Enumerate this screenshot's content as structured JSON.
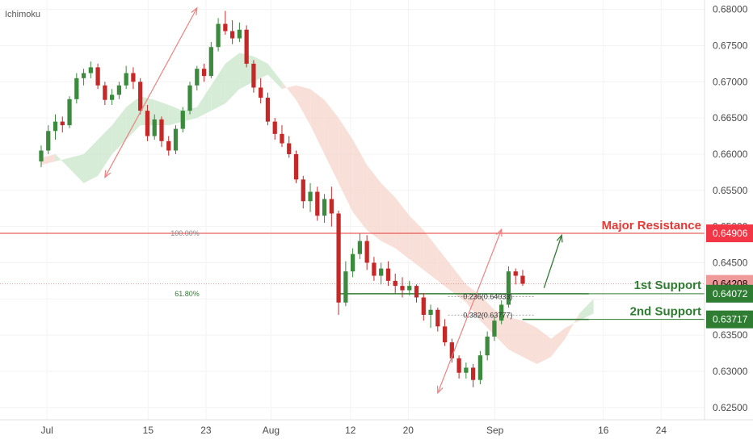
{
  "chart_data": {
    "type": "candlestick",
    "title": "Ichimoku",
    "instrument_note": "",
    "y_ticks": [
      0.625,
      0.63,
      0.635,
      0.64,
      0.645,
      0.65,
      0.655,
      0.66,
      0.665,
      0.67,
      0.675,
      0.68
    ],
    "y_tick_labels": [
      "0.62500",
      "0.63000",
      "0.63500",
      "0.64000",
      "0.64500",
      "0.65000",
      "0.65500",
      "0.66000",
      "0.66500",
      "0.67000",
      "0.67500",
      "0.68000"
    ],
    "ylim": [
      0.6233,
      0.6813
    ],
    "x_tick_labels": [
      "Jul",
      "15",
      "23",
      "Aug",
      "12",
      "20",
      "Sep",
      "16",
      "24"
    ],
    "x_tick_days": [
      1,
      15,
      23,
      32,
      43,
      51,
      63,
      78,
      86
    ],
    "x_range_days": [
      -5.5,
      92
    ],
    "price_labels": [
      {
        "value": 0.64906,
        "text": "0.64906",
        "color": "#f23645",
        "text_color": "#ffffff"
      },
      {
        "value": 0.64208,
        "text": "0.64208",
        "color": "#ef9a9a",
        "text_color": "#000000"
      },
      {
        "value": 0.64072,
        "text": "0.64072",
        "color": "#2e7d32",
        "text_color": "#ffffff"
      },
      {
        "value": 0.63717,
        "text": "0.63717",
        "color": "#2e7d32",
        "text_color": "#ffffff"
      }
    ],
    "levels": {
      "resistance": {
        "value": 0.64906,
        "label": "Major Resistance",
        "color": "#e53935"
      },
      "support1": {
        "value": 0.64072,
        "label": "1st Support",
        "color": "#2e7d32"
      },
      "support2": {
        "value": 0.63717,
        "label": "2nd Support",
        "color": "#2e7d32"
      }
    },
    "fibonacci": [
      {
        "label": "100.00%",
        "value": 0.64906
      },
      {
        "label": "61.80%",
        "value": 0.64072
      },
      {
        "label": "0.236(0.64033)",
        "value": 0.64033
      },
      {
        "label": "0.382(0.63777)",
        "value": 0.63777
      }
    ],
    "colors": {
      "up": "#3b8a3e",
      "down": "#c62828",
      "cloud_bull": "#c8e6c9",
      "cloud_bear": "#f5d5cc",
      "arrow": "#f08080",
      "resistance_line": "#e53935",
      "support_line": "#2e7d32",
      "current_line": "#e57373"
    },
    "candles": [
      [
        0,
        0.659,
        0.6612,
        0.6582,
        0.6605
      ],
      [
        1,
        0.6605,
        0.664,
        0.66,
        0.6632
      ],
      [
        2,
        0.6632,
        0.6655,
        0.662,
        0.6645
      ],
      [
        3,
        0.6645,
        0.6652,
        0.663,
        0.664
      ],
      [
        4,
        0.664,
        0.668,
        0.6636,
        0.6676
      ],
      [
        5,
        0.6676,
        0.6712,
        0.667,
        0.6705
      ],
      [
        6,
        0.6705,
        0.6718,
        0.6695,
        0.6712
      ],
      [
        7,
        0.6712,
        0.6728,
        0.6705,
        0.672
      ],
      [
        8,
        0.672,
        0.6725,
        0.669,
        0.6695
      ],
      [
        9,
        0.6695,
        0.67,
        0.6668,
        0.6675
      ],
      [
        10,
        0.6675,
        0.669,
        0.6668,
        0.6682
      ],
      [
        11,
        0.6682,
        0.67,
        0.6676,
        0.6695
      ],
      [
        12,
        0.6695,
        0.6722,
        0.669,
        0.6712
      ],
      [
        13,
        0.6712,
        0.672,
        0.669,
        0.67
      ],
      [
        14,
        0.67,
        0.6705,
        0.6655,
        0.666
      ],
      [
        15,
        0.666,
        0.6668,
        0.6618,
        0.6625
      ],
      [
        16,
        0.6625,
        0.6655,
        0.662,
        0.6648
      ],
      [
        17,
        0.6648,
        0.6652,
        0.661,
        0.6618
      ],
      [
        18,
        0.6618,
        0.6625,
        0.6598,
        0.6605
      ],
      [
        19,
        0.6605,
        0.664,
        0.66,
        0.6635
      ],
      [
        20,
        0.6635,
        0.6665,
        0.663,
        0.666
      ],
      [
        21,
        0.666,
        0.67,
        0.6655,
        0.6695
      ],
      [
        22,
        0.6695,
        0.6722,
        0.6688,
        0.6718
      ],
      [
        23,
        0.6718,
        0.6725,
        0.67,
        0.6708
      ],
      [
        24,
        0.6708,
        0.6755,
        0.6705,
        0.6748
      ],
      [
        25,
        0.6748,
        0.6788,
        0.6742,
        0.678
      ],
      [
        26,
        0.678,
        0.6798,
        0.6765,
        0.677
      ],
      [
        27,
        0.677,
        0.6785,
        0.6752,
        0.676
      ],
      [
        28,
        0.676,
        0.6782,
        0.6755,
        0.6772
      ],
      [
        29,
        0.6772,
        0.6778,
        0.672,
        0.6725
      ],
      [
        30,
        0.6725,
        0.673,
        0.6685,
        0.6692
      ],
      [
        31,
        0.6692,
        0.6705,
        0.667,
        0.6678
      ],
      [
        32,
        0.6678,
        0.6685,
        0.664,
        0.6645
      ],
      [
        33,
        0.6645,
        0.665,
        0.662,
        0.6628
      ],
      [
        34,
        0.6628,
        0.664,
        0.661,
        0.6615
      ],
      [
        35,
        0.6615,
        0.6625,
        0.6595,
        0.66
      ],
      [
        36,
        0.66,
        0.6605,
        0.656,
        0.6565
      ],
      [
        37,
        0.6565,
        0.657,
        0.6525,
        0.6535
      ],
      [
        38,
        0.6535,
        0.656,
        0.652,
        0.6548
      ],
      [
        39,
        0.6548,
        0.6555,
        0.6508,
        0.6515
      ],
      [
        40,
        0.6515,
        0.6545,
        0.6505,
        0.6538
      ],
      [
        41,
        0.6538,
        0.6555,
        0.65,
        0.6518
      ],
      [
        42,
        0.6518,
        0.6522,
        0.6378,
        0.6395
      ],
      [
        43,
        0.6395,
        0.6452,
        0.639,
        0.6438
      ],
      [
        44,
        0.6438,
        0.647,
        0.643,
        0.6462
      ],
      [
        45,
        0.6462,
        0.649,
        0.6455,
        0.648
      ],
      [
        46,
        0.648,
        0.6488,
        0.644,
        0.645
      ],
      [
        47,
        0.645,
        0.6458,
        0.6425,
        0.6432
      ],
      [
        48,
        0.6432,
        0.645,
        0.642,
        0.6442
      ],
      [
        49,
        0.6442,
        0.6452,
        0.6418,
        0.6425
      ],
      [
        50,
        0.6425,
        0.6435,
        0.6408,
        0.6418
      ],
      [
        51,
        0.6418,
        0.643,
        0.6402,
        0.6412
      ],
      [
        52,
        0.6412,
        0.6425,
        0.6405,
        0.6418
      ],
      [
        53,
        0.6418,
        0.642,
        0.6395,
        0.6402
      ],
      [
        54,
        0.6402,
        0.6408,
        0.637,
        0.6378
      ],
      [
        55,
        0.6378,
        0.6392,
        0.636,
        0.6385
      ],
      [
        56,
        0.6385,
        0.6388,
        0.6355,
        0.6362
      ],
      [
        57,
        0.6362,
        0.6372,
        0.6335,
        0.634
      ],
      [
        58,
        0.634,
        0.6345,
        0.6312,
        0.6318
      ],
      [
        59,
        0.6318,
        0.6322,
        0.629,
        0.6298
      ],
      [
        60,
        0.6298,
        0.6312,
        0.629,
        0.6305
      ],
      [
        61,
        0.6305,
        0.631,
        0.6278,
        0.6288
      ],
      [
        62,
        0.6288,
        0.6328,
        0.6282,
        0.6322
      ],
      [
        63,
        0.6322,
        0.6355,
        0.6315,
        0.6348
      ],
      [
        64,
        0.6348,
        0.6375,
        0.6342,
        0.637
      ],
      [
        65,
        0.637,
        0.6398,
        0.6365,
        0.6392
      ],
      [
        66,
        0.6392,
        0.6445,
        0.6388,
        0.6438
      ],
      [
        67,
        0.6438,
        0.6442,
        0.642,
        0.6432
      ],
      [
        68,
        0.6432,
        0.644,
        0.6418,
        0.6421
      ]
    ],
    "ichimoku_cloud": [
      [
        0,
        0.6585,
        0.6595
      ],
      [
        2,
        0.659,
        0.66
      ],
      [
        4,
        0.6595,
        0.658
      ],
      [
        6,
        0.66,
        0.656
      ],
      [
        8,
        0.662,
        0.657
      ],
      [
        10,
        0.664,
        0.66
      ],
      [
        12,
        0.6665,
        0.662
      ],
      [
        14,
        0.668,
        0.664
      ],
      [
        16,
        0.6675,
        0.664
      ],
      [
        18,
        0.6668,
        0.664
      ],
      [
        20,
        0.666,
        0.6645
      ],
      [
        22,
        0.6665,
        0.665
      ],
      [
        24,
        0.6695,
        0.666
      ],
      [
        26,
        0.6725,
        0.667
      ],
      [
        28,
        0.674,
        0.669
      ],
      [
        30,
        0.6735,
        0.67
      ],
      [
        32,
        0.6725,
        0.671
      ],
      [
        34,
        0.67,
        0.669
      ],
      [
        36,
        0.6675,
        0.6695
      ],
      [
        38,
        0.664,
        0.669
      ],
      [
        40,
        0.66,
        0.6675
      ],
      [
        42,
        0.656,
        0.665
      ],
      [
        44,
        0.652,
        0.662
      ],
      [
        46,
        0.6495,
        0.6585
      ],
      [
        48,
        0.648,
        0.656
      ],
      [
        50,
        0.647,
        0.654
      ],
      [
        52,
        0.6455,
        0.6515
      ],
      [
        54,
        0.644,
        0.6495
      ],
      [
        56,
        0.6425,
        0.647
      ],
      [
        58,
        0.641,
        0.6445
      ],
      [
        60,
        0.6395,
        0.642
      ],
      [
        62,
        0.637,
        0.6405
      ],
      [
        64,
        0.635,
        0.6385
      ],
      [
        66,
        0.633,
        0.6375
      ],
      [
        68,
        0.632,
        0.637
      ],
      [
        70,
        0.631,
        0.636
      ],
      [
        72,
        0.632,
        0.6345
      ],
      [
        74,
        0.6345,
        0.636
      ],
      [
        76,
        0.638,
        0.637
      ],
      [
        78,
        0.64,
        0.638
      ]
    ],
    "trend_arrows": [
      {
        "from": [
          9,
          0.6568
        ],
        "to": [
          22,
          0.6802
        ]
      },
      {
        "from": [
          56,
          0.627
        ],
        "to": [
          65,
          0.6496
        ]
      }
    ],
    "projection_arrow": {
      "from": [
        71,
        0.6415
      ],
      "to": [
        73.5,
        0.6488
      ]
    },
    "current_price": 0.64208
  },
  "header": {
    "indicator_label": "Ichimoku"
  }
}
